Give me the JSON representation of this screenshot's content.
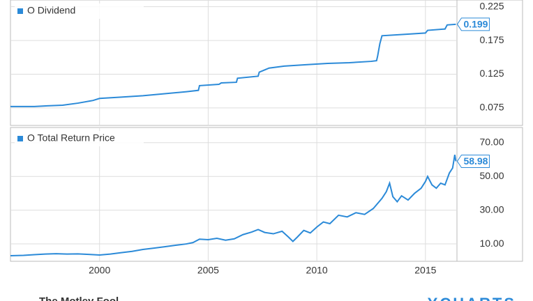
{
  "chart_data": [
    {
      "type": "line",
      "legend": "top-left",
      "xlim": [
        1995.9,
        2016.45
      ],
      "ylim": [
        0.049,
        0.235
      ],
      "yticks": [
        0.075,
        0.125,
        0.175,
        0.225
      ],
      "grid": true,
      "series": [
        {
          "name": "O Dividend",
          "color": "#2b8ad8",
          "x": [
            1995.9,
            1997.0,
            1997.6,
            1998.3,
            1999.0,
            1999.7,
            2000.0,
            2001.0,
            2002.0,
            2003.0,
            2004.0,
            2004.55,
            2004.6,
            2005.5,
            2005.6,
            2006.3,
            2006.35,
            2007.3,
            2007.35,
            2007.8,
            2008.5,
            2009.5,
            2010.5,
            2011.5,
            2012.5,
            2012.75,
            2012.8,
            2012.9,
            2013.0,
            2014.0,
            2015.0,
            2015.1,
            2015.9,
            2016.0,
            2016.4
          ],
          "values": [
            0.077,
            0.077,
            0.078,
            0.079,
            0.082,
            0.086,
            0.089,
            0.091,
            0.093,
            0.096,
            0.099,
            0.101,
            0.108,
            0.11,
            0.112,
            0.113,
            0.119,
            0.122,
            0.128,
            0.134,
            0.137,
            0.139,
            0.141,
            0.142,
            0.144,
            0.145,
            0.152,
            0.17,
            0.182,
            0.184,
            0.186,
            0.19,
            0.192,
            0.198,
            0.199
          ]
        }
      ]
    },
    {
      "type": "line",
      "legend": "top-left",
      "xlim": [
        1995.9,
        2016.45
      ],
      "ylim": [
        -0.3,
        79
      ],
      "xticks": [
        2000,
        2005,
        2010,
        2015
      ],
      "yticks": [
        {
          "value": 10,
          "label": "10.00"
        },
        {
          "value": 30,
          "label": "30.00"
        },
        {
          "value": 50,
          "label": "50.00"
        },
        {
          "value": 70,
          "label": "70.00"
        }
      ],
      "grid": true,
      "series": [
        {
          "name": "O Total Return Price",
          "color": "#2b8ad8",
          "x": [
            1995.9,
            1996.5,
            1997.0,
            1997.5,
            1998.0,
            1998.5,
            1999.0,
            1999.5,
            2000.0,
            2000.5,
            2001.0,
            2001.5,
            2002.0,
            2002.5,
            2003.0,
            2003.5,
            2004.0,
            2004.3,
            2004.6,
            2005.0,
            2005.4,
            2005.8,
            2006.2,
            2006.6,
            2007.0,
            2007.3,
            2007.6,
            2008.0,
            2008.4,
            2008.7,
            2008.9,
            2009.1,
            2009.4,
            2009.7,
            2010.0,
            2010.3,
            2010.6,
            2011.0,
            2011.4,
            2011.8,
            2012.2,
            2012.6,
            2013.0,
            2013.2,
            2013.35,
            2013.5,
            2013.7,
            2013.9,
            2014.2,
            2014.5,
            2014.8,
            2015.0,
            2015.1,
            2015.3,
            2015.5,
            2015.7,
            2015.9,
            2016.1,
            2016.25,
            2016.35,
            2016.4
          ],
          "values": [
            3.0,
            3.2,
            3.6,
            4.0,
            4.2,
            4.0,
            4.1,
            3.8,
            3.4,
            4.0,
            4.8,
            5.6,
            6.7,
            7.5,
            8.3,
            9.2,
            10.0,
            10.8,
            12.8,
            12.5,
            13.3,
            12.2,
            13.0,
            15.5,
            17.0,
            18.5,
            16.8,
            16.0,
            17.5,
            14.0,
            11.5,
            14.0,
            18.0,
            16.5,
            20.0,
            23.0,
            22.0,
            27.0,
            26.0,
            28.5,
            27.5,
            31.0,
            37.0,
            41.0,
            46.0,
            38.0,
            35.0,
            38.5,
            36.0,
            40.0,
            43.0,
            47.0,
            50.0,
            45.0,
            43.0,
            46.0,
            45.0,
            52.0,
            55.0,
            62.8,
            58.98
          ]
        }
      ]
    }
  ],
  "footer": {
    "left": "The Motley Fool",
    "right": "YCHARTS"
  }
}
